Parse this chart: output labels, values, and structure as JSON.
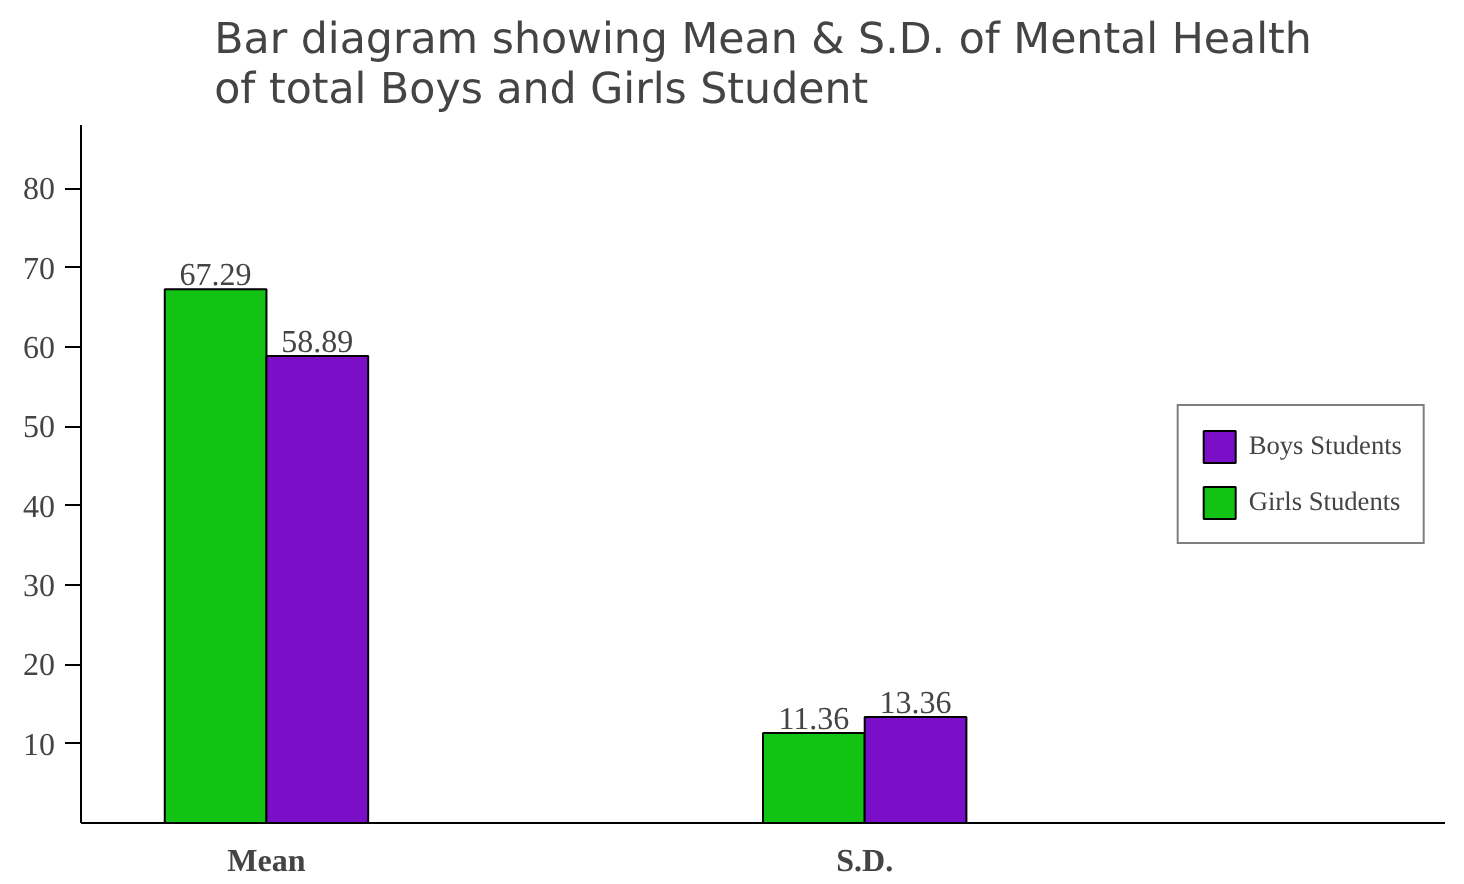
{
  "chart_data": {
    "type": "bar",
    "title": "Bar diagram showing Mean & S.D. of Mental Health\nof total Boys and Girls Student",
    "categories": [
      "Mean",
      "S.D."
    ],
    "series": [
      {
        "name": "Girls Students",
        "color": "#13c313",
        "values": [
          67.29,
          11.36
        ]
      },
      {
        "name": "Boys Students",
        "color": "#7a0fc7",
        "values": [
          58.89,
          13.36
        ]
      }
    ],
    "ylim": [
      0,
      88
    ],
    "yticks": [
      10,
      20,
      30,
      40,
      50,
      60,
      70,
      80
    ],
    "data_labels": true,
    "grid": false,
    "legend": "right"
  }
}
